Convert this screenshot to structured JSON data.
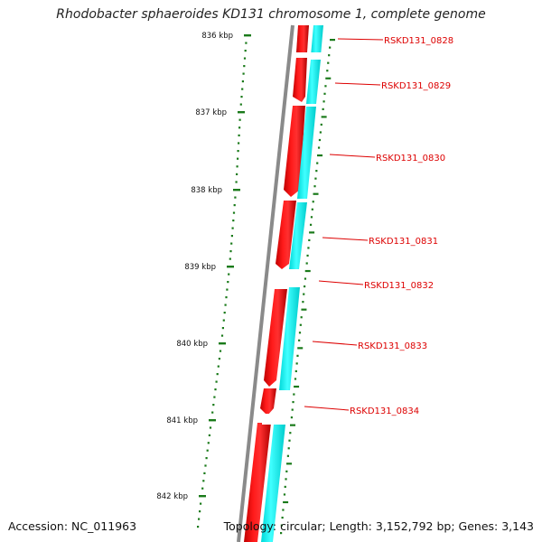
{
  "title": "Rhodobacter sphaeroides KD131 chromosome 1, complete genome",
  "footer": {
    "accession": "Accession: NC_011963",
    "summary": "Topology: circular; Length: 3,152,792 bp; Genes: 3,143"
  },
  "ruler": {
    "ticks": [
      {
        "label": "836 kbp"
      },
      {
        "label": "837 kbp"
      },
      {
        "label": "838 kbp"
      },
      {
        "label": "839 kbp"
      },
      {
        "label": "840 kbp"
      },
      {
        "label": "841 kbp"
      },
      {
        "label": "842 kbp"
      }
    ]
  },
  "genes": [
    {
      "label": "RSKD131_0828"
    },
    {
      "label": "RSKD131_0829"
    },
    {
      "label": "RSKD131_0830"
    },
    {
      "label": "RSKD131_0831"
    },
    {
      "label": "RSKD131_0832"
    },
    {
      "label": "RSKD131_0833"
    },
    {
      "label": "RSKD131_0834"
    }
  ],
  "colors": {
    "backbone": "#808080",
    "gene_strand": "#ff0000",
    "cds_strand": "#00ffff",
    "label": "#dd0000",
    "tick": "#1a7a1a"
  }
}
